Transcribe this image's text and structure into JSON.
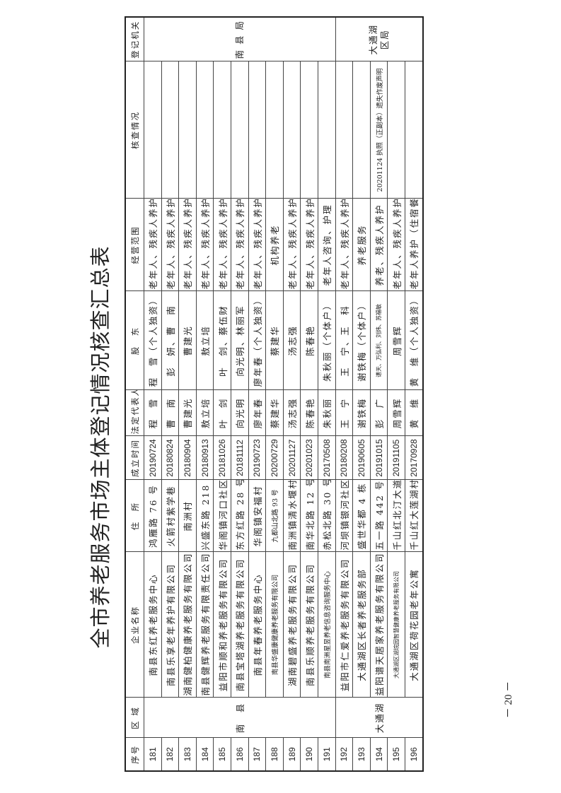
{
  "title": "全市养老服务市场主体登记情况核查汇总表",
  "page_number": "－ 20 －",
  "headers": [
    "序号",
    "区 域",
    "企业名称",
    "住　所",
    "成立时间",
    "法定代表人",
    "股　东",
    "经营范围",
    "核查情况",
    "登记机关"
  ],
  "areas": [
    "南　县",
    "大通湖"
  ],
  "authorities": [
    "南 县 局",
    "大通湖区局"
  ],
  "rows": [
    {
      "no": "181",
      "name": "南县东红养老服务中心",
      "address": "鸿雁路 76 号",
      "date": "20190724",
      "rep": "程　雪",
      "holders": "程　雪（个人独资）",
      "scope": "老年人、残疾人养护",
      "check": ""
    },
    {
      "no": "182",
      "name": "南县乐享老年养护有限公司",
      "address": "火箭村紫学巷",
      "date": "20180824",
      "rep": "曹　南",
      "holders": "彭　妍、曹　南",
      "scope": "老年人、残疾人养护",
      "check": ""
    },
    {
      "no": "183",
      "name": "湖南健柏健康养老服务有限公司",
      "address": "南洲村",
      "date": "20180904",
      "rep": "曹建光",
      "holders": "曹建光",
      "scope": "老年人、残疾人养护",
      "check": ""
    },
    {
      "no": "184",
      "name": "南县健辉养老服务有限责任公司",
      "address": "兴盛东路 218 号",
      "date": "20180913",
      "rep": "敖立培",
      "holders": "敖立培",
      "scope": "老年人、残疾人养护",
      "check": ""
    },
    {
      "no": "185",
      "name": "益阳市顺和养老服务有限公司",
      "address": "华阁镇河口社区",
      "date": "20181026",
      "rep": "叶　剑",
      "holders": "叶　剑、蔡伍财",
      "scope": "老年人、残疾人养护",
      "check": ""
    },
    {
      "no": "186",
      "name": "南县宝塔湖养老服务有限公司",
      "address": "东方红路 28 号",
      "date": "20181112",
      "rep": "向光明",
      "holders": "向光明、林丽军",
      "scope": "老年人、残疾人养护",
      "check": ""
    },
    {
      "no": "187",
      "name": "南县年春养老服务中心",
      "address": "华阁镇安福村",
      "date": "20190723",
      "rep": "廖年春",
      "holders": "廖年春（个人独资）",
      "scope": "老年人、残疾人养护",
      "check": ""
    },
    {
      "no": "188",
      "name": "南县华盛康健康养老服务有限公司",
      "address": "九都山北路 93 号",
      "date": "20200729",
      "rep": "蔡建华",
      "holders": "蔡建华",
      "scope": "机构养老",
      "check": ""
    },
    {
      "no": "189",
      "name": "湖南碧盛养老服务有限公司",
      "address": "南洲镇清水堰村",
      "date": "20201127",
      "rep": "汤志强",
      "holders": "汤志强",
      "scope": "老年人、残疾人养护",
      "check": ""
    },
    {
      "no": "190",
      "name": "南县乐顺养老服务有限公司",
      "address": "南华北路 12 号",
      "date": "20201023",
      "rep": "陈春艳",
      "holders": "陈春艳",
      "scope": "老年人、残疾人养护",
      "check": ""
    },
    {
      "no": "191",
      "name": "南县南洲星昱养老信息咨询服务中心",
      "address": "赤松北路 30 号",
      "date": "20170508",
      "rep": "朱秋丽",
      "holders": "朱秋丽（个体户）",
      "scope": "老年人咨询、护理",
      "check": ""
    },
    {
      "no": "192",
      "name": "益阳市仁爱养老服务有限公司",
      "address": "河坝镇银河社区",
      "date": "20180208",
      "rep": "王　宁",
      "holders": "王　宁、王　科",
      "scope": "老年人、残疾人养护",
      "check": ""
    },
    {
      "no": "193",
      "name": "大通湖区长者养老服务部",
      "address": "盛世华都 4 栋",
      "date": "20190605",
      "rep": "谢铁梅",
      "holders": "谢铁梅（个体户）",
      "scope": "养老服务",
      "check": ""
    },
    {
      "no": "194",
      "name": "益阳谱天居家养老服务有限公司",
      "address": "五一路 442 号",
      "date": "20191015",
      "rep": "彭　广",
      "holders": "谱天、万弘利、刘炜、苏福敏",
      "scope": "养老、残疾人养护",
      "check": "20201124 执照（正副本）遗失作废声明"
    },
    {
      "no": "195",
      "name": "大通湖区湖垸园智慧健康养老服务有限公司",
      "address": "千山红北汀大道",
      "date": "20191105",
      "rep": "周雪辉",
      "holders": "周雪辉",
      "scope": "老年人、残疾人养护",
      "check": ""
    },
    {
      "no": "196",
      "name": "大通湖区荷花园老年公寓",
      "address": "千山红大莲湖村",
      "date": "20170928",
      "rep": "黄　维",
      "holders": "黄　维（个人独资）",
      "scope": "老年人养护（住宿餐饮）",
      "check": ""
    }
  ]
}
